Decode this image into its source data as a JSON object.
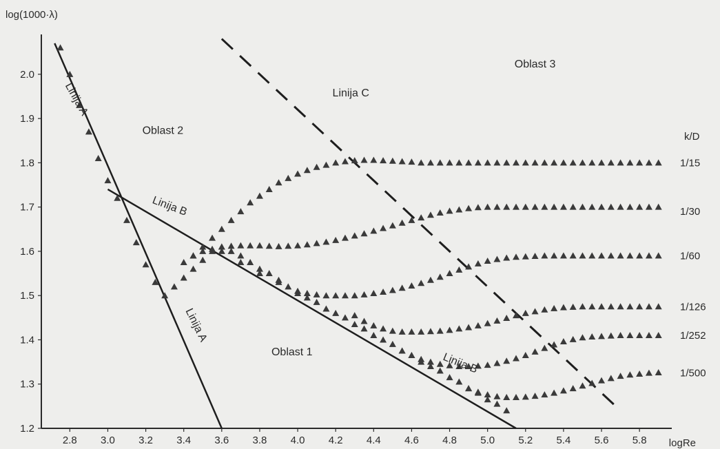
{
  "chart_data": {
    "type": "scatter",
    "title": "",
    "xlabel": "logRe",
    "ylabel": "log(1000·λ)",
    "xlim": [
      2.65,
      5.97
    ],
    "ylim": [
      1.2,
      2.09
    ],
    "x_ticks": [
      "2.8",
      "3.0",
      "3.2",
      "3.4",
      "3.6",
      "3.8",
      "4.0",
      "4.2",
      "4.4",
      "4.6",
      "4.8",
      "5.0",
      "5.2",
      "5.4",
      "5.6",
      "5.8"
    ],
    "y_ticks": [
      "1.2",
      "1.3",
      "1.4",
      "1.5",
      "1.6",
      "1.7",
      "1.8",
      "1.9",
      "2.0"
    ],
    "grid": false,
    "marker_color": "#3a3a3a",
    "legend_title": "k/D",
    "series": [
      {
        "name": "1/15",
        "label_y": 1.8,
        "x": [
          3.4,
          3.45,
          3.5,
          3.55,
          3.6,
          3.65,
          3.7,
          3.75,
          3.8,
          3.85,
          3.9,
          3.95,
          4.0,
          4.05,
          4.1,
          4.15,
          4.2,
          4.25,
          4.3,
          4.35,
          4.4,
          4.45,
          4.5,
          4.55,
          4.6,
          4.65,
          4.7,
          4.75,
          4.8,
          4.85,
          4.9,
          4.95,
          5.0,
          5.05,
          5.1,
          5.15,
          5.2,
          5.25,
          5.3,
          5.35,
          5.4,
          5.45,
          5.5,
          5.55,
          5.6,
          5.65,
          5.7,
          5.75,
          5.8,
          5.85,
          5.9
        ],
        "y": [
          1.575,
          1.59,
          1.61,
          1.63,
          1.65,
          1.67,
          1.69,
          1.71,
          1.725,
          1.74,
          1.755,
          1.765,
          1.775,
          1.783,
          1.79,
          1.795,
          1.8,
          1.803,
          1.805,
          1.806,
          1.806,
          1.805,
          1.804,
          1.803,
          1.802,
          1.8,
          1.8,
          1.8,
          1.8,
          1.8,
          1.8,
          1.8,
          1.8,
          1.8,
          1.8,
          1.8,
          1.8,
          1.8,
          1.8,
          1.8,
          1.8,
          1.8,
          1.8,
          1.8,
          1.8,
          1.8,
          1.8,
          1.8,
          1.8,
          1.8,
          1.8
        ]
      },
      {
        "name": "1/30",
        "label_y": 1.69,
        "x": [
          3.45,
          3.5,
          3.55,
          3.6,
          3.65,
          3.7,
          3.75,
          3.8,
          3.85,
          3.9,
          3.95,
          4.0,
          4.05,
          4.1,
          4.15,
          4.2,
          4.25,
          4.3,
          4.35,
          4.4,
          4.45,
          4.5,
          4.55,
          4.6,
          4.65,
          4.7,
          4.75,
          4.8,
          4.85,
          4.9,
          4.95,
          5.0,
          5.05,
          5.1,
          5.15,
          5.2,
          5.25,
          5.3,
          5.35,
          5.4,
          5.45,
          5.5,
          5.55,
          5.6,
          5.65,
          5.7,
          5.75,
          5.8,
          5.85,
          5.9
        ],
        "y": [
          1.59,
          1.6,
          1.605,
          1.61,
          1.612,
          1.613,
          1.613,
          1.613,
          1.612,
          1.611,
          1.612,
          1.613,
          1.615,
          1.618,
          1.621,
          1.625,
          1.63,
          1.635,
          1.64,
          1.646,
          1.652,
          1.658,
          1.664,
          1.67,
          1.676,
          1.682,
          1.687,
          1.691,
          1.694,
          1.697,
          1.699,
          1.7,
          1.7,
          1.7,
          1.7,
          1.7,
          1.7,
          1.7,
          1.7,
          1.7,
          1.7,
          1.7,
          1.7,
          1.7,
          1.7,
          1.7,
          1.7,
          1.7,
          1.7,
          1.7
        ]
      },
      {
        "name": "1/60",
        "label_y": 1.59,
        "x": [
          3.6,
          3.7,
          3.8,
          3.9,
          4.0,
          4.05,
          4.1,
          4.15,
          4.2,
          4.25,
          4.3,
          4.35,
          4.4,
          4.45,
          4.5,
          4.55,
          4.6,
          4.65,
          4.7,
          4.75,
          4.8,
          4.85,
          4.9,
          4.95,
          5.0,
          5.05,
          5.1,
          5.15,
          5.2,
          5.25,
          5.3,
          5.35,
          5.4,
          5.45,
          5.5,
          5.55,
          5.6,
          5.65,
          5.7,
          5.75,
          5.8,
          5.85,
          5.9
        ],
        "y": [
          1.6,
          1.575,
          1.55,
          1.53,
          1.51,
          1.505,
          1.502,
          1.5,
          1.5,
          1.5,
          1.5,
          1.502,
          1.505,
          1.508,
          1.512,
          1.517,
          1.522,
          1.528,
          1.535,
          1.542,
          1.55,
          1.558,
          1.565,
          1.572,
          1.578,
          1.582,
          1.585,
          1.587,
          1.588,
          1.589,
          1.59,
          1.59,
          1.59,
          1.59,
          1.59,
          1.59,
          1.59,
          1.59,
          1.59,
          1.59,
          1.59,
          1.59,
          1.59
        ]
      },
      {
        "name": "1/126",
        "label_y": 1.475,
        "x": [
          4.3,
          4.35,
          4.4,
          4.45,
          4.5,
          4.55,
          4.6,
          4.65,
          4.7,
          4.75,
          4.8,
          4.85,
          4.9,
          4.95,
          5.0,
          5.05,
          5.1,
          5.15,
          5.2,
          5.25,
          5.3,
          5.35,
          5.4,
          5.45,
          5.5,
          5.55,
          5.6,
          5.65,
          5.7,
          5.75,
          5.8,
          5.85,
          5.9
        ],
        "y": [
          1.455,
          1.442,
          1.432,
          1.425,
          1.42,
          1.418,
          1.418,
          1.418,
          1.419,
          1.42,
          1.422,
          1.425,
          1.428,
          1.432,
          1.437,
          1.443,
          1.449,
          1.455,
          1.46,
          1.464,
          1.468,
          1.471,
          1.473,
          1.474,
          1.475,
          1.475,
          1.475,
          1.475,
          1.475,
          1.475,
          1.475,
          1.475,
          1.475
        ]
      },
      {
        "name": "1/252",
        "label_y": 1.41,
        "x": [
          4.55,
          4.6,
          4.65,
          4.7,
          4.75,
          4.8,
          4.85,
          4.9,
          4.95,
          5.0,
          5.05,
          5.1,
          5.15,
          5.2,
          5.25,
          5.3,
          5.35,
          5.4,
          5.45,
          5.5,
          5.55,
          5.6,
          5.65,
          5.7,
          5.75,
          5.8,
          5.85,
          5.9
        ],
        "y": [
          1.375,
          1.365,
          1.356,
          1.35,
          1.345,
          1.342,
          1.34,
          1.34,
          1.341,
          1.343,
          1.347,
          1.352,
          1.358,
          1.365,
          1.373,
          1.381,
          1.389,
          1.396,
          1.401,
          1.405,
          1.407,
          1.408,
          1.409,
          1.41,
          1.41,
          1.41,
          1.41,
          1.41
        ]
      },
      {
        "name": "1/500",
        "label_y": 1.325,
        "x": [
          4.9,
          4.95,
          5.0,
          5.05,
          5.1,
          5.15,
          5.2,
          5.25,
          5.3,
          5.35,
          5.4,
          5.45,
          5.5,
          5.55,
          5.6,
          5.65,
          5.7,
          5.75,
          5.8,
          5.85,
          5.9
        ],
        "y": [
          1.29,
          1.282,
          1.276,
          1.272,
          1.27,
          1.27,
          1.271,
          1.273,
          1.276,
          1.28,
          1.285,
          1.29,
          1.296,
          1.302,
          1.308,
          1.313,
          1.318,
          1.321,
          1.323,
          1.325,
          1.326
        ]
      }
    ],
    "lines": [
      {
        "name": "Linija A",
        "style": "solid",
        "x": [
          2.72,
          3.6
        ],
        "y": [
          2.07,
          1.2
        ]
      },
      {
        "name": "Linija B",
        "style": "solid",
        "x": [
          3.0,
          5.15
        ],
        "y": [
          1.74,
          1.2
        ]
      },
      {
        "name": "Linija C",
        "style": "dashed",
        "x": [
          3.6,
          5.7
        ],
        "y": [
          2.08,
          1.24
        ]
      }
    ],
    "annotations": [
      {
        "text": "Linija A",
        "x": 2.82,
        "y": 1.94,
        "rotate": 61
      },
      {
        "text": "Linija A",
        "x": 3.45,
        "y": 1.43,
        "rotate": 64
      },
      {
        "text": "Linija B",
        "x": 3.32,
        "y": 1.695,
        "rotate": 21
      },
      {
        "text": "Linija B",
        "x": 4.85,
        "y": 1.34,
        "rotate": 22
      },
      {
        "text": "Linija C",
        "x": 4.28,
        "y": 1.95,
        "rotate": 0
      },
      {
        "text": "Oblast 1",
        "x": 3.97,
        "y": 1.365,
        "rotate": 0
      },
      {
        "text": "Oblast 2",
        "x": 3.29,
        "y": 1.865,
        "rotate": 0
      },
      {
        "text": "Oblast 3",
        "x": 5.25,
        "y": 2.015,
        "rotate": 0
      }
    ],
    "band_points": {
      "x": [
        2.75,
        2.8,
        2.85,
        2.9,
        2.95,
        3.0,
        3.05,
        3.1,
        3.15,
        3.2,
        3.25,
        3.3,
        3.35,
        3.4,
        3.45,
        3.5,
        3.55,
        3.6,
        3.65,
        3.7,
        3.75,
        3.8,
        3.85,
        3.9,
        3.95,
        4.0,
        4.05,
        4.1,
        4.15,
        4.2,
        4.25,
        4.3,
        4.35,
        4.4,
        4.45,
        4.5,
        4.55,
        4.6,
        4.65,
        4.7,
        4.75,
        4.8,
        4.85,
        4.9,
        4.95,
        5.0,
        5.05,
        5.1
      ],
      "y": [
        2.06,
        2.0,
        1.93,
        1.87,
        1.81,
        1.76,
        1.72,
        1.67,
        1.62,
        1.57,
        1.53,
        1.5,
        1.52,
        1.54,
        1.56,
        1.58,
        1.6,
        1.61,
        1.6,
        1.59,
        1.575,
        1.56,
        1.55,
        1.535,
        1.52,
        1.505,
        1.495,
        1.485,
        1.47,
        1.46,
        1.45,
        1.435,
        1.425,
        1.41,
        1.4,
        1.39,
        1.375,
        1.365,
        1.35,
        1.34,
        1.33,
        1.315,
        1.305,
        1.29,
        1.28,
        1.265,
        1.255,
        1.24
      ]
    }
  }
}
